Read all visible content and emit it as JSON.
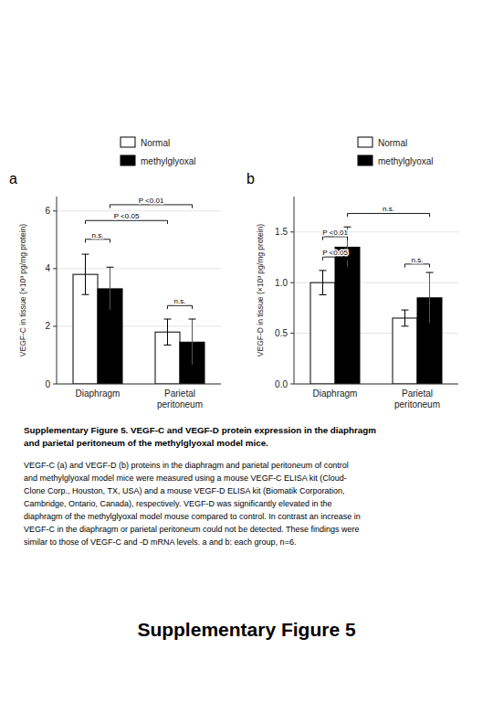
{
  "chart_data": [
    {
      "type": "bar",
      "title": "a",
      "categories": [
        "Diaphragm",
        "Parietal\nperitoneum"
      ],
      "series": [
        {
          "name": "Normal",
          "color": "white",
          "values": [
            3.8,
            1.8
          ],
          "errors": [
            0.7,
            0.45
          ]
        },
        {
          "name": "methylglyoxal",
          "color": "black",
          "values": [
            3.3,
            1.45
          ],
          "errors": [
            0.75,
            0.8
          ]
        }
      ],
      "ylabel": "VEGF-C in tissue (×10³ pg/mg protein)",
      "ylim": [
        0,
        6.5
      ],
      "yticks": [
        0,
        2,
        4,
        6
      ],
      "annotations": [
        {
          "label": "n.s.",
          "x1": 0,
          "x2": 1,
          "y": 4.9
        },
        {
          "label": "n.s.",
          "x1": 2,
          "x2": 3,
          "y": 2.6
        },
        {
          "label": "P <0.05",
          "x1": 0,
          "x2": 2,
          "y": 5.55
        },
        {
          "label": "P <0.01",
          "x1": 1,
          "x2": 3,
          "y": 6.1
        }
      ]
    },
    {
      "type": "bar",
      "title": "b",
      "categories": [
        "Diaphragm",
        "Parietal\nperitoneum"
      ],
      "series": [
        {
          "name": "Normal",
          "color": "white",
          "values": [
            1.0,
            0.65
          ],
          "errors": [
            0.12,
            0.08
          ]
        },
        {
          "name": "methylglyoxal",
          "color": "black",
          "values": [
            1.35,
            0.85
          ],
          "errors": [
            0.2,
            0.25
          ]
        }
      ],
      "ylabel": "VEGF-D in tissue (×10³ pg/mg protein)",
      "ylim": [
        0,
        1.85
      ],
      "yticks": [
        {
          "value": 0,
          "label": "0.0"
        },
        0.5,
        {
          "value": 1.0,
          "label": "1.0"
        },
        1.5
      ],
      "annotations": [
        {
          "label": "P <0.05",
          "x1": 0,
          "x2": 1,
          "y": 1.22
        },
        {
          "label": "P <0.01",
          "x1": 0,
          "x2": 1,
          "y": 1.42
        },
        {
          "label": "n.s.",
          "x1": 2,
          "x2": 3,
          "y": 1.15
        },
        {
          "label": "n.s.",
          "x1": 1,
          "x2": 3,
          "y": 1.65
        }
      ]
    }
  ],
  "caption_heading": [
    "Supplementary Figure 5. VEGF-C and VEGF-D protein expression in the diaphragm",
    "and parietal peritoneum of the methylglyoxal model mice."
  ],
  "caption": [
    "VEGF-C (a) and VEGF-D (b) proteins in the diaphragm and parietal peritoneum of control",
    "and methylglyoxal model mice were measured using a mouse VEGF-C ELISA kit (Cloud-",
    "Clone Corp., Houston, TX, USA) and a mouse VEGF-D ELISA kit (Biomatik Corporation,",
    "Cambridge, Ontario, Canada), respectively. VEGF-D was significantly elevated in the",
    "diaphragm of the methylglyoxal model mouse compared to control. In contrast an increase in",
    "VEGF-C in the diaphragm or parietal peritoneum could not be detected. These findings were",
    "similar to those of VEGF-C and -D mRNA levels. a and b: each group, n=6."
  ],
  "figure_title": "Supplementary Figure 5"
}
